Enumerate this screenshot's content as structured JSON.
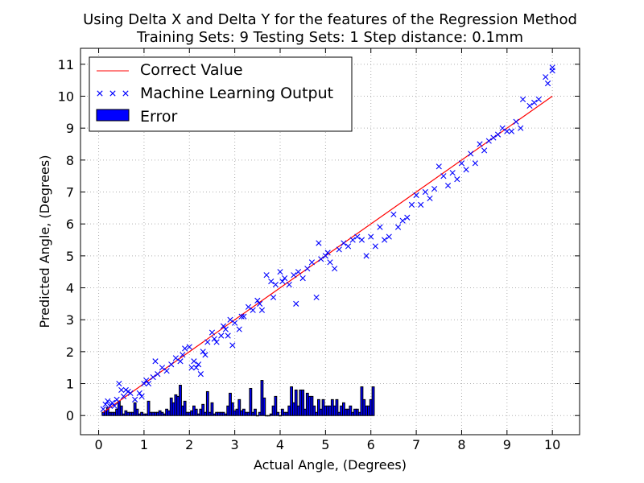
{
  "chart_data": {
    "type": "scatter",
    "title": "Using Delta X and Delta Y for the features of the Regression Method",
    "subtitle": "Training Sets: 9    Testing Sets: 1    Step distance: 0.1mm",
    "xlabel": "Actual Angle, (Degrees)",
    "ylabel": "Predicted Angle, (Degrees)",
    "xlim": [
      -0.4,
      10.6
    ],
    "ylim": [
      -0.6,
      11.5
    ],
    "x_ticks": [
      0,
      1,
      2,
      3,
      4,
      5,
      6,
      7,
      8,
      9,
      10
    ],
    "y_ticks": [
      0,
      1,
      2,
      3,
      4,
      5,
      6,
      7,
      8,
      9,
      10,
      11
    ],
    "grid": true,
    "legend_position": "top-left",
    "series": [
      {
        "name": "Correct Value",
        "kind": "line",
        "color": "#ff0000",
        "x": [
          0.1,
          10.0
        ],
        "y": [
          0.1,
          10.0
        ]
      },
      {
        "name": "Machine Learning Output",
        "kind": "scatter",
        "marker": "x",
        "color": "#0000ff",
        "points": [
          [
            0.1,
            0.2
          ],
          [
            0.15,
            0.35
          ],
          [
            0.2,
            0.45
          ],
          [
            0.25,
            0.3
          ],
          [
            0.3,
            0.4
          ],
          [
            0.35,
            0.3
          ],
          [
            0.4,
            0.5
          ],
          [
            0.45,
            1.0
          ],
          [
            0.5,
            0.8
          ],
          [
            0.55,
            0.6
          ],
          [
            0.6,
            0.8
          ],
          [
            0.65,
            0.75
          ],
          [
            0.7,
            0.7
          ],
          [
            0.8,
            0.5
          ],
          [
            0.9,
            0.7
          ],
          [
            0.95,
            0.6
          ],
          [
            1.0,
            1.0
          ],
          [
            1.05,
            1.1
          ],
          [
            1.1,
            1.0
          ],
          [
            1.2,
            1.2
          ],
          [
            1.25,
            1.7
          ],
          [
            1.3,
            1.3
          ],
          [
            1.4,
            1.5
          ],
          [
            1.5,
            1.4
          ],
          [
            1.6,
            1.6
          ],
          [
            1.7,
            1.8
          ],
          [
            1.8,
            1.7
          ],
          [
            1.85,
            1.9
          ],
          [
            1.9,
            2.1
          ],
          [
            2.0,
            2.15
          ],
          [
            2.05,
            1.5
          ],
          [
            2.1,
            1.7
          ],
          [
            2.15,
            1.5
          ],
          [
            2.2,
            1.6
          ],
          [
            2.25,
            1.3
          ],
          [
            2.3,
            2.0
          ],
          [
            2.35,
            1.9
          ],
          [
            2.4,
            2.3
          ],
          [
            2.5,
            2.6
          ],
          [
            2.55,
            2.4
          ],
          [
            2.6,
            2.3
          ],
          [
            2.7,
            2.5
          ],
          [
            2.75,
            2.8
          ],
          [
            2.8,
            2.7
          ],
          [
            2.85,
            2.5
          ],
          [
            2.9,
            3.0
          ],
          [
            2.95,
            2.2
          ],
          [
            3.0,
            2.9
          ],
          [
            3.1,
            2.7
          ],
          [
            3.15,
            3.1
          ],
          [
            3.2,
            3.1
          ],
          [
            3.3,
            3.4
          ],
          [
            3.4,
            3.3
          ],
          [
            3.5,
            3.6
          ],
          [
            3.55,
            3.5
          ],
          [
            3.6,
            3.3
          ],
          [
            3.7,
            4.4
          ],
          [
            3.8,
            4.2
          ],
          [
            3.85,
            3.7
          ],
          [
            3.9,
            4.1
          ],
          [
            4.0,
            4.5
          ],
          [
            4.05,
            4.2
          ],
          [
            4.1,
            4.3
          ],
          [
            4.2,
            4.1
          ],
          [
            4.3,
            4.4
          ],
          [
            4.35,
            3.5
          ],
          [
            4.4,
            4.5
          ],
          [
            4.5,
            4.3
          ],
          [
            4.6,
            4.6
          ],
          [
            4.7,
            4.8
          ],
          [
            4.8,
            3.7
          ],
          [
            4.85,
            5.4
          ],
          [
            4.9,
            4.9
          ],
          [
            5.0,
            5.0
          ],
          [
            5.05,
            5.1
          ],
          [
            5.1,
            4.8
          ],
          [
            5.2,
            4.6
          ],
          [
            5.3,
            5.2
          ],
          [
            5.4,
            5.4
          ],
          [
            5.5,
            5.3
          ],
          [
            5.6,
            5.5
          ],
          [
            5.7,
            5.6
          ],
          [
            5.8,
            5.5
          ],
          [
            5.9,
            5.0
          ],
          [
            6.0,
            5.6
          ],
          [
            6.1,
            5.3
          ],
          [
            6.2,
            5.9
          ],
          [
            6.3,
            5.5
          ],
          [
            6.4,
            5.6
          ],
          [
            6.5,
            6.3
          ],
          [
            6.6,
            5.9
          ],
          [
            6.7,
            6.1
          ],
          [
            6.8,
            6.2
          ],
          [
            6.9,
            6.6
          ],
          [
            7.0,
            6.9
          ],
          [
            7.1,
            6.6
          ],
          [
            7.2,
            7.0
          ],
          [
            7.3,
            6.8
          ],
          [
            7.4,
            7.1
          ],
          [
            7.5,
            7.8
          ],
          [
            7.6,
            7.5
          ],
          [
            7.7,
            7.2
          ],
          [
            7.8,
            7.6
          ],
          [
            7.9,
            7.4
          ],
          [
            8.0,
            7.9
          ],
          [
            8.1,
            7.7
          ],
          [
            8.2,
            8.2
          ],
          [
            8.3,
            7.9
          ],
          [
            8.4,
            8.5
          ],
          [
            8.5,
            8.3
          ],
          [
            8.6,
            8.6
          ],
          [
            8.7,
            8.7
          ],
          [
            8.8,
            8.8
          ],
          [
            8.9,
            9.0
          ],
          [
            9.0,
            8.9
          ],
          [
            9.1,
            8.9
          ],
          [
            9.2,
            9.2
          ],
          [
            9.3,
            9.0
          ],
          [
            9.35,
            9.9
          ],
          [
            9.5,
            9.7
          ],
          [
            9.6,
            9.8
          ],
          [
            9.7,
            9.9
          ],
          [
            9.85,
            10.6
          ],
          [
            9.9,
            10.4
          ],
          [
            10.0,
            10.9
          ],
          [
            10.0,
            10.8
          ]
        ]
      },
      {
        "name": "Error",
        "kind": "bar",
        "color": "#0000ff",
        "x_start": 0.1,
        "bar_step": 0.05,
        "values": [
          0.1,
          0.15,
          0.25,
          0.1,
          0.1,
          0.1,
          0.2,
          0.45,
          0.3,
          0.05,
          0.15,
          0.1,
          0.1,
          0.1,
          0.4,
          0.2,
          0.05,
          0.1,
          0.05,
          0.05,
          0.45,
          0.1,
          0.1,
          0.1,
          0.1,
          0.15,
          0.1,
          0.05,
          0.2,
          0.15,
          0.55,
          0.4,
          0.65,
          0.6,
          0.95,
          0.3,
          0.45,
          0.1,
          0.1,
          0.15,
          0.3,
          0.2,
          0.05,
          0.2,
          0.35,
          0.1,
          0.75,
          0.1,
          0.4,
          0.05,
          0.1,
          0.1,
          0.1,
          0.1,
          0.05,
          0.3,
          0.7,
          0.4,
          0.15,
          0.2,
          0.5,
          0.15,
          0.2,
          0.1,
          0.1,
          0.85,
          0.1,
          0.2,
          0.0,
          0.1,
          1.1,
          0.55,
          0.0,
          0.0,
          0.05,
          0.3,
          0.6,
          0.1,
          0.0,
          0.2,
          0.1,
          0.1,
          0.3,
          0.9,
          0.4,
          0.8,
          0.3,
          0.8,
          0.8,
          0.2,
          0.7,
          0.6,
          0.6,
          0.3,
          0.1,
          0.5,
          0.2,
          0.5,
          0.3,
          0.3,
          0.3,
          0.5,
          0.3,
          0.5,
          0.1,
          0.3,
          0.4,
          0.2,
          0.2,
          0.3,
          0.1,
          0.2,
          0.2,
          0.1,
          0.9,
          0.5,
          0.3,
          0.3,
          0.5,
          0.9
        ]
      }
    ]
  }
}
